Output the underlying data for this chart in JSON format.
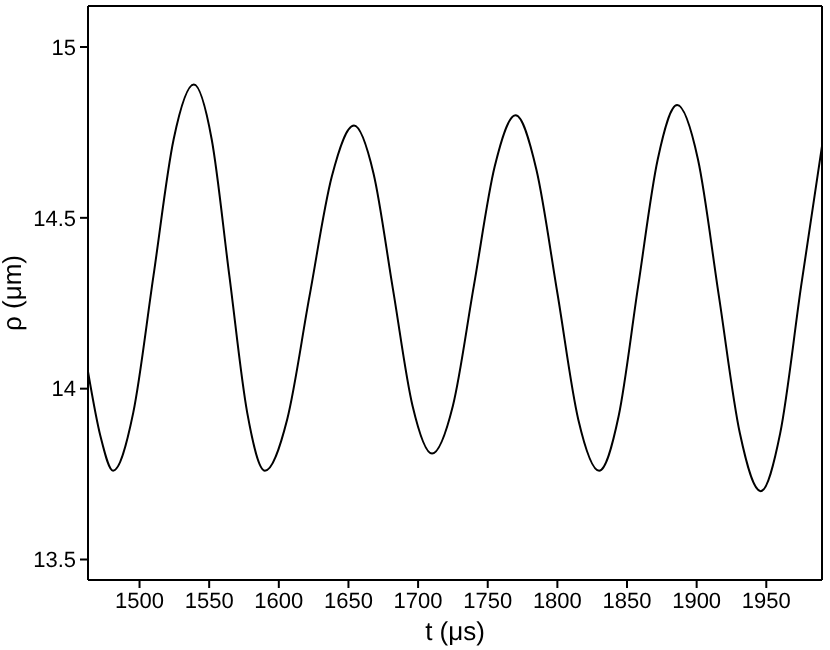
{
  "chart_data": {
    "type": "line",
    "xlabel": "t   (μs)",
    "ylabel": "ρ  (μm)",
    "x": [
      1463,
      1472,
      1481,
      1495.5,
      1510,
      1524.5,
      1539,
      1551.8,
      1564.5,
      1577.3,
      1590,
      1606,
      1622,
      1638,
      1654,
      1668,
      1682,
      1696,
      1710,
      1725,
      1740,
      1755,
      1770,
      1785,
      1800,
      1815,
      1830,
      1844,
      1858,
      1872,
      1886,
      1901,
      1916,
      1931,
      1946,
      1960,
      1975,
      1990
    ],
    "series": [
      {
        "color": "#000000",
        "values": [
          14.05,
          13.86,
          13.76,
          13.93,
          14.33,
          14.73,
          14.89,
          14.73,
          14.33,
          13.93,
          13.76,
          13.91,
          14.27,
          14.62,
          14.77,
          14.63,
          14.29,
          13.95,
          13.81,
          13.95,
          14.3,
          14.65,
          14.8,
          14.64,
          14.28,
          13.91,
          13.76,
          13.92,
          14.3,
          14.67,
          14.83,
          14.67,
          14.27,
          13.87,
          13.7,
          13.87,
          14.3,
          14.71
        ]
      }
    ],
    "xlim": [
      1463,
      1990
    ],
    "xticks": [
      1500,
      1550,
      1600,
      1650,
      1700,
      1750,
      1800,
      1850,
      1900,
      1950
    ],
    "ylim": [
      13.44,
      15.12
    ],
    "yticks": [
      13.5,
      14,
      14.5,
      15
    ],
    "grid": false,
    "legend": false,
    "marker": "none",
    "line_style": "solid"
  }
}
